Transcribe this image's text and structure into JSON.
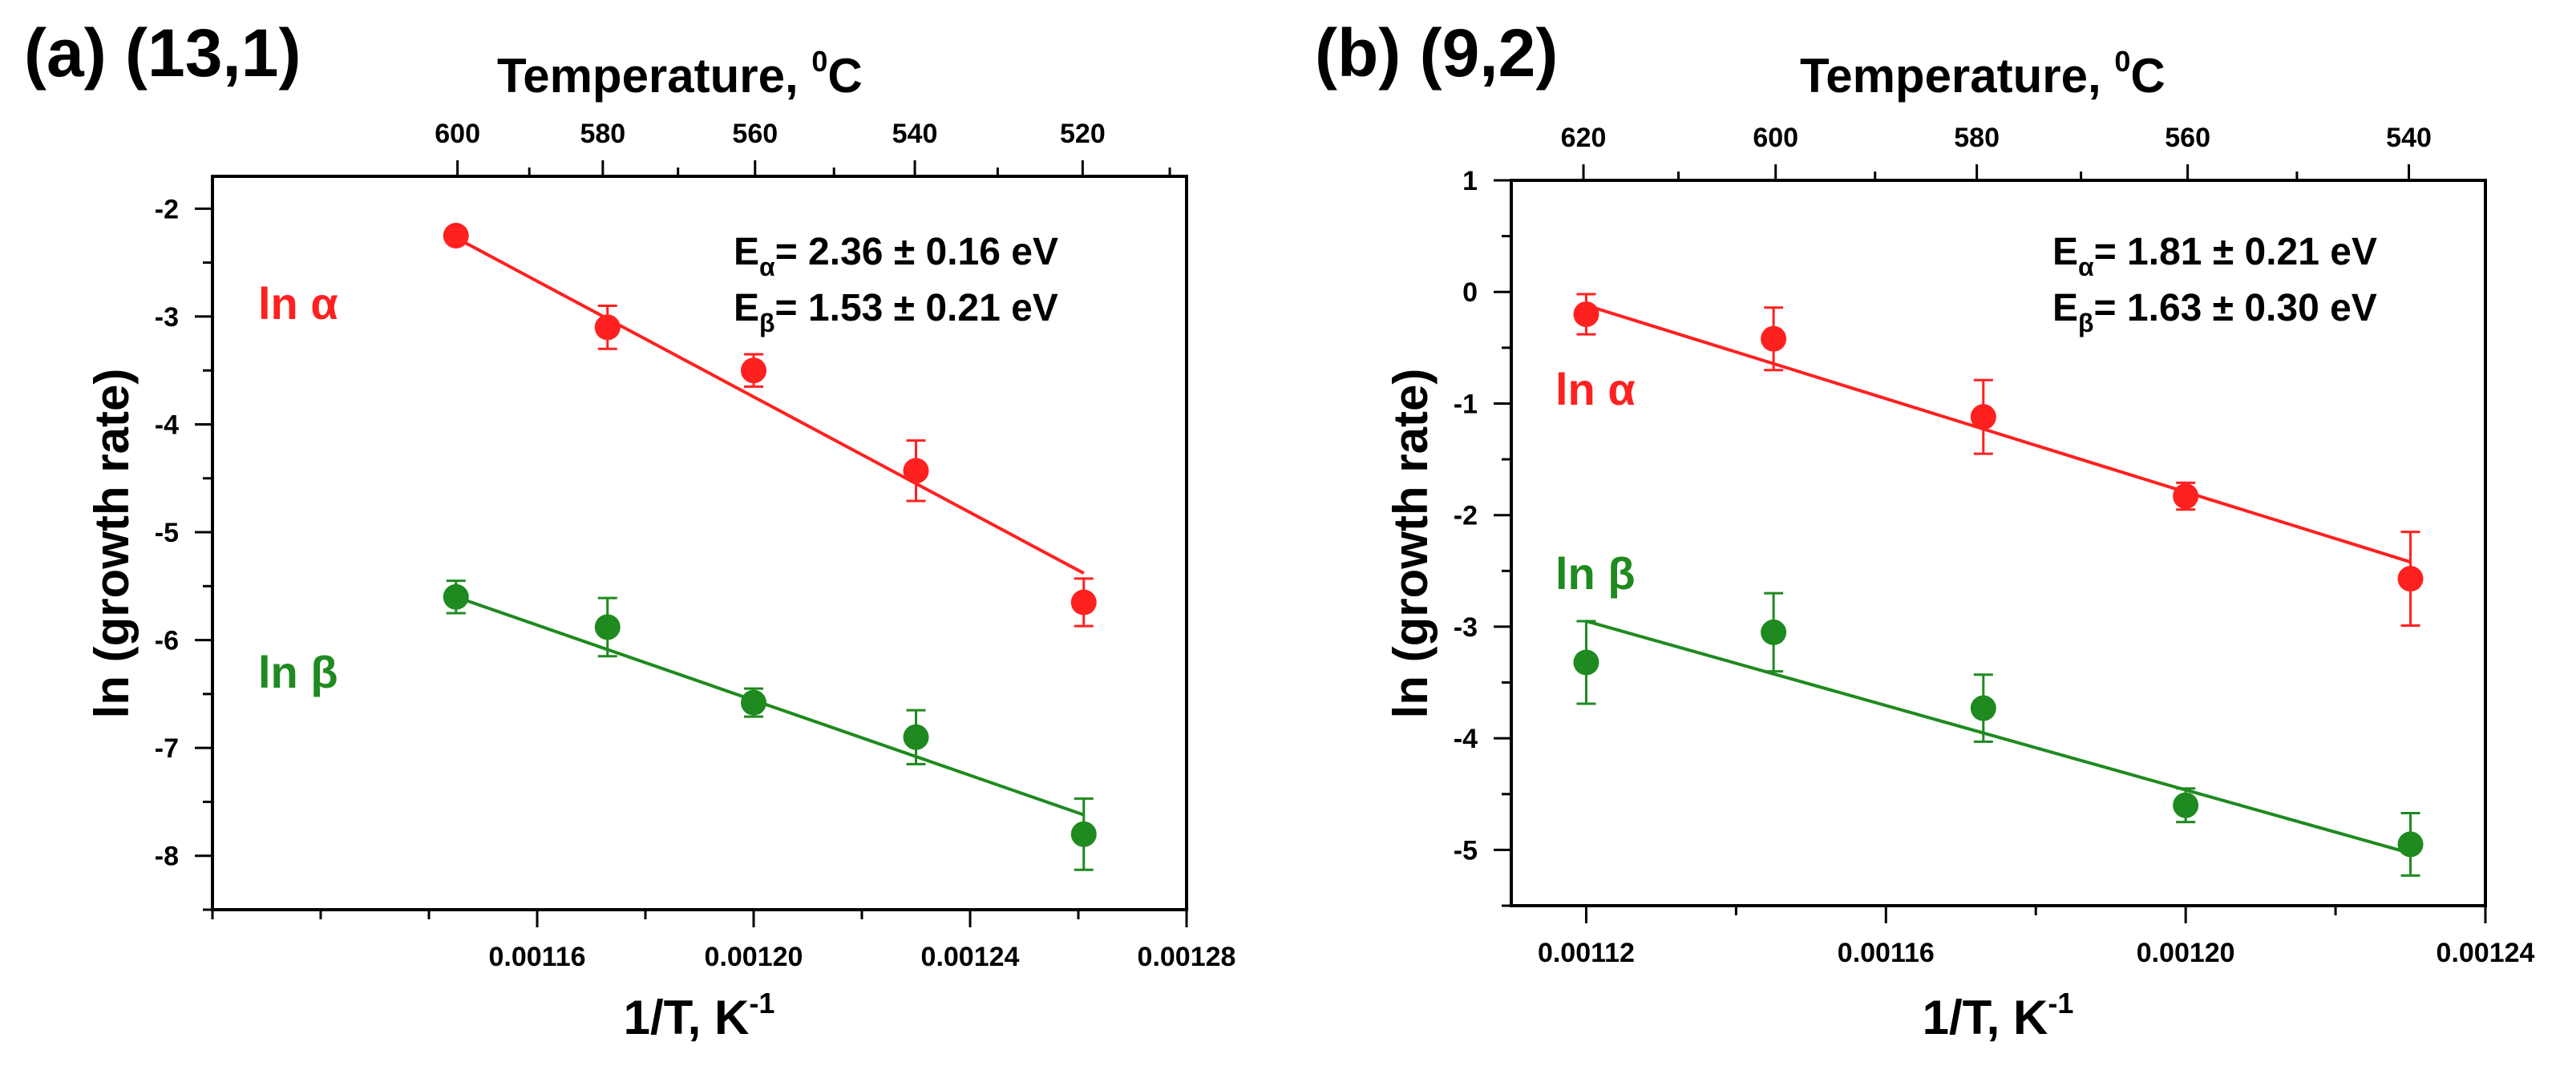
{
  "colors": {
    "alpha": "#ff2020",
    "beta": "#1f8a1f",
    "axis": "#000000"
  },
  "chart_data": [
    {
      "type": "scatter",
      "panel_label": "(a) (13,1)",
      "top_axis": {
        "title": "Temperature, ",
        "title_sup": "0",
        "title_unit": "C",
        "tick_labels": [
          "600",
          "580",
          "560",
          "540",
          "520"
        ],
        "tick_temps_C": [
          600,
          580,
          560,
          540,
          520
        ]
      },
      "xlabel": "1/T, K",
      "xlabel_sup": "-1",
      "ylabel": "ln (growth rate)",
      "xlim": [
        0.0011,
        0.00128
      ],
      "ylim": [
        -8.5,
        -1.7
      ],
      "xticks": [
        0.00116,
        0.0012,
        0.00124,
        0.00128
      ],
      "xtick_labels": [
        "0.00116",
        "0.00120",
        "0.00124",
        "0.00128"
      ],
      "yticks": [
        -2,
        -3,
        -4,
        -5,
        -6,
        -7,
        -8
      ],
      "ytick_labels": [
        "-2",
        "-3",
        "-4",
        "-5",
        "-6",
        "-7",
        "-8"
      ],
      "energy_alpha": {
        "prefix": "E",
        "sub": "α",
        "text": "= 2.36 ± 0.16 eV"
      },
      "energy_beta": {
        "prefix": "E",
        "sub": "β",
        "text": "= 1.53 ± 0.21 eV"
      },
      "series": [
        {
          "name": "ln α",
          "color": "#ff2020",
          "x": [
            0.001145,
            0.001173,
            0.0012,
            0.00123,
            0.001261
          ],
          "y": [
            -2.25,
            -3.1,
            -3.5,
            -4.43,
            -5.65
          ],
          "err": [
            0.0,
            0.2,
            0.15,
            0.28,
            0.22
          ],
          "fit": [
            [
              0.001145,
              -2.27
            ],
            [
              0.001261,
              -5.38
            ]
          ]
        },
        {
          "name": "ln β",
          "color": "#1f8a1f",
          "x": [
            0.001145,
            0.001173,
            0.0012,
            0.00123,
            0.001261
          ],
          "y": [
            -5.6,
            -5.88,
            -6.58,
            -6.9,
            -7.8
          ],
          "err": [
            0.15,
            0.27,
            0.13,
            0.25,
            0.33
          ],
          "fit": [
            [
              0.001145,
              -5.6
            ],
            [
              0.001261,
              -7.62
            ]
          ]
        }
      ]
    },
    {
      "type": "scatter",
      "panel_label": "(b) (9,2)",
      "top_axis": {
        "title": "Temperature, ",
        "title_sup": "0",
        "title_unit": "C",
        "tick_labels": [
          "620",
          "600",
          "580",
          "560",
          "540"
        ],
        "tick_temps_C": [
          620,
          600,
          580,
          560,
          540
        ]
      },
      "xlabel": "1/T, K",
      "xlabel_sup": "-1",
      "ylabel": "ln (growth rate)",
      "xlim": [
        0.00111,
        0.00124
      ],
      "ylim": [
        -5.5,
        1.0
      ],
      "xticks": [
        0.00112,
        0.00116,
        0.0012,
        0.00124
      ],
      "xtick_labels": [
        "0.00112",
        "0.00116",
        "0.00120",
        "0.00124"
      ],
      "yticks": [
        1,
        0,
        -1,
        -2,
        -3,
        -4,
        -5
      ],
      "ytick_labels": [
        "1",
        "0",
        "-1",
        "-2",
        "-3",
        "-4",
        "-5"
      ],
      "energy_alpha": {
        "prefix": "E",
        "sub": "α",
        "text": "= 1.81 ± 0.21 eV"
      },
      "energy_beta": {
        "prefix": "E",
        "sub": "β",
        "text": "= 1.63 ± 0.30 eV"
      },
      "series": [
        {
          "name": "ln α",
          "color": "#ff2020",
          "x": [
            0.00112,
            0.001145,
            0.001173,
            0.0012,
            0.00123
          ],
          "y": [
            -0.2,
            -0.42,
            -1.12,
            -1.83,
            -2.57
          ],
          "err": [
            0.18,
            0.28,
            0.33,
            0.12,
            0.42
          ],
          "fit": [
            [
              0.00112,
              -0.12
            ],
            [
              0.00123,
              -2.42
            ]
          ]
        },
        {
          "name": "ln β",
          "color": "#1f8a1f",
          "x": [
            0.00112,
            0.001145,
            0.001173,
            0.0012,
            0.00123
          ],
          "y": [
            -3.32,
            -3.05,
            -3.73,
            -4.6,
            -4.95
          ],
          "err": [
            0.37,
            0.35,
            0.3,
            0.15,
            0.28
          ],
          "fit": [
            [
              0.00112,
              -2.95
            ],
            [
              0.00123,
              -5.03
            ]
          ]
        }
      ]
    }
  ]
}
